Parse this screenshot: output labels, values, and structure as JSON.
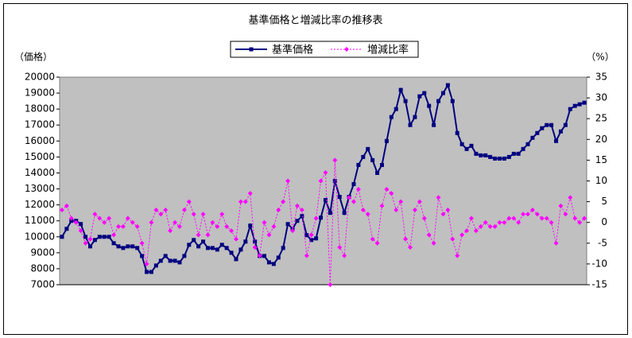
{
  "chart_data": {
    "type": "line",
    "title": "基準価格と増減比率の推移表",
    "ylabel": "（価格）",
    "y2label": "（%）",
    "categories": [
      null,
      null,
      null,
      null,
      null,
      null,
      null,
      null,
      null,
      null,
      null,
      null,
      null,
      null,
      null,
      null,
      null,
      null,
      null,
      null,
      null,
      null,
      null,
      null,
      null,
      null,
      null,
      null,
      null,
      null,
      null,
      null,
      null,
      null,
      null,
      null,
      null,
      null,
      null,
      null,
      null,
      null,
      null,
      null,
      null,
      null,
      null,
      null,
      null,
      null,
      null,
      null,
      null,
      null,
      null,
      null,
      null,
      null,
      null,
      null,
      null,
      null,
      null,
      null,
      null,
      null,
      null,
      null,
      null,
      null,
      null,
      null,
      null,
      null,
      null,
      null,
      null,
      null,
      null,
      null,
      null,
      null,
      null,
      null,
      null,
      null,
      null,
      null,
      null,
      null,
      null,
      null,
      null,
      null,
      null,
      null,
      null,
      null,
      null,
      null,
      null,
      null,
      null,
      null,
      null,
      null,
      null,
      null,
      null,
      null,
      null,
      null
    ],
    "series": [
      {
        "name": "基準価格",
        "color": "#000080",
        "marker": "square",
        "linestyle": "solid",
        "values": [
          10000,
          10500,
          11000,
          11000,
          10800,
          10000,
          9400,
          9800,
          10000,
          10000,
          10000,
          9600,
          9400,
          9300,
          9400,
          9400,
          9300,
          8800,
          7800,
          7800,
          8200,
          8500,
          8800,
          8500,
          8500,
          8400,
          8800,
          9500,
          9800,
          9400,
          9700,
          9300,
          9300,
          9200,
          9500,
          9300,
          9000,
          8600,
          9200,
          9700,
          10700,
          9700,
          8800,
          8800,
          8400,
          8300,
          8700,
          9300,
          10800,
          10500,
          11000,
          11300,
          10100,
          9800,
          9900,
          11200,
          12300,
          11500,
          13500,
          12500,
          11500,
          12500,
          13300,
          14500,
          15000,
          15500,
          14800,
          14000,
          14500,
          16000,
          17500,
          18000,
          19200,
          18500,
          17000,
          17500,
          18800,
          19000,
          18200,
          17000,
          18500,
          19000,
          19500,
          18500,
          16500,
          15800,
          15500,
          15700,
          15200,
          15100,
          15100,
          15000,
          14900,
          14900,
          14900,
          15000,
          15200,
          15200,
          15500,
          15800,
          16200,
          16500,
          16800,
          17000,
          17000,
          16000,
          16600,
          17000,
          18000,
          18200,
          18300,
          18400
        ]
      },
      {
        "name": "増減比率",
        "color": "#ff00ff",
        "marker": "diamond",
        "linestyle": "dotted",
        "axis": "y2",
        "values": [
          3,
          4,
          1,
          0,
          -2,
          -5,
          -4,
          2,
          1,
          0,
          1,
          -3,
          -1,
          -1,
          1,
          0,
          -1,
          -5,
          -10,
          0,
          3,
          2,
          3,
          -2,
          0,
          -1,
          3,
          5,
          2,
          -3,
          2,
          -3,
          0,
          -1,
          2,
          -1,
          -2,
          -4,
          5,
          5,
          7,
          -6,
          -8,
          0,
          -3,
          -1,
          3,
          5,
          10,
          -2,
          4,
          3,
          -8,
          -3,
          1,
          10,
          12,
          -15,
          15,
          -6,
          -8,
          6,
          5,
          8,
          3,
          2,
          -4,
          -5,
          4,
          8,
          7,
          3,
          5,
          -4,
          -6,
          3,
          5,
          1,
          -3,
          -5,
          6,
          2,
          3,
          -4,
          -8,
          -3,
          -2,
          1,
          -2,
          -1,
          0,
          -1,
          -1,
          0,
          0,
          1,
          1,
          0,
          2,
          2,
          3,
          2,
          1,
          1,
          0,
          -5,
          4,
          2,
          6,
          1,
          0,
          1
        ]
      }
    ],
    "ylim": [
      7000,
      20000
    ],
    "yticks": [
      7000,
      8000,
      9000,
      10000,
      11000,
      12000,
      13000,
      14000,
      15000,
      16000,
      17000,
      18000,
      19000,
      20000
    ],
    "y2lim": [
      -15,
      35
    ],
    "y2ticks": [
      -15,
      -10,
      -5,
      0,
      5,
      10,
      15,
      20,
      25,
      30,
      35
    ],
    "plot_background": "#c0c0c0",
    "legend": "top"
  }
}
